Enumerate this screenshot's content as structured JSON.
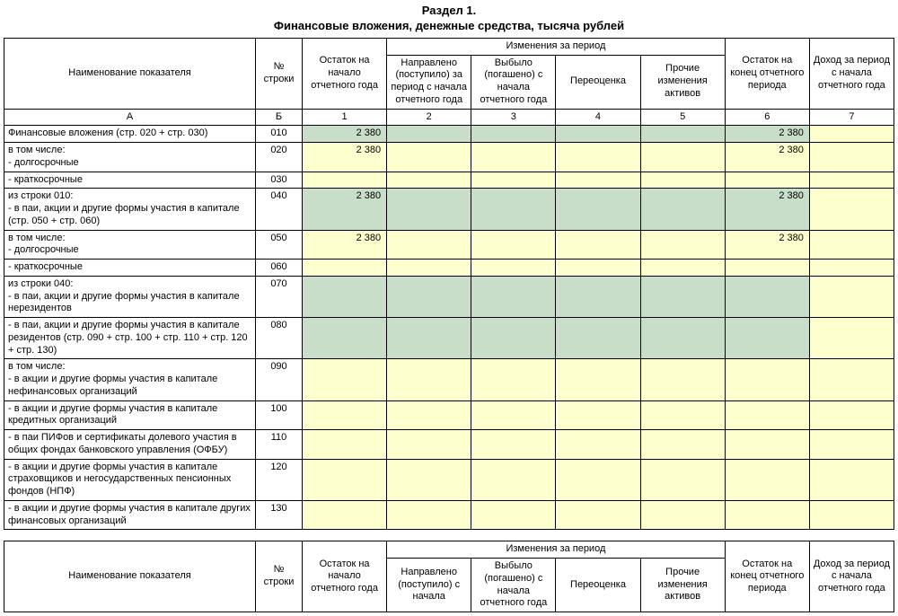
{
  "title_line1": "Раздел 1.",
  "title_line2": "Финансовые вложения, денежные средства, тысяча рублей",
  "columns": {
    "name": "Наименование показателя",
    "rowno": "№ строки",
    "start": "Остаток на начало отчетного года",
    "changes": "Изменения за период",
    "c2": "Направлено (поступило) за период с начала отчетного года",
    "c3": "Выбыло (погашено) с начала отчетного года",
    "c4": "Переоценка",
    "c5": "Прочие изменения активов",
    "end": "Остаток на конец отчетного периода",
    "income": "Доход за период с начала отчетного года"
  },
  "letters": {
    "a": "А",
    "b": "Б",
    "c1": "1",
    "c2": "2",
    "c3": "3",
    "c4": "4",
    "c5": "5",
    "c6": "6",
    "c7": "7"
  },
  "footer_changes_c2": "Направлено (поступило) с начала",
  "footer_changes_c3": "Выбыло (погашено) с начала отчетного года",
  "footer_income": "Доход за период с начала отчетного года",
  "rows": [
    {
      "label": "Финансовые вложения (стр. 020 + стр. 030)",
      "code": "010",
      "bg": "green",
      "v1": "2 380",
      "v6": "2 380",
      "col7bg": "yellow"
    },
    {
      "label": "в том числе:\n  - долгосрочные",
      "code": "020",
      "bg": "yellow",
      "v1": "2 380",
      "v6": "2 380",
      "col7bg": "yellow"
    },
    {
      "label": "  - краткосрочные",
      "code": "030",
      "bg": "yellow",
      "col7bg": "yellow"
    },
    {
      "label": "из строки 010:\n- в паи, акции и другие формы участия в капитале (стр. 050 + стр. 060)",
      "code": "040",
      "bg": "green",
      "v1": "2 380",
      "v6": "2 380",
      "col7bg": "yellow"
    },
    {
      "label": "в том числе:\n  - долгосрочные",
      "code": "050",
      "bg": "yellow",
      "v1": "2 380",
      "v6": "2 380",
      "col7bg": "yellow"
    },
    {
      "label": "  - краткосрочные",
      "code": "060",
      "bg": "yellow",
      "col7bg": "yellow"
    },
    {
      "label": "из строки 040:\n- в паи, акции и другие формы участия в капитале нерезидентов",
      "code": "070",
      "bg": "green",
      "col7bg": "yellow"
    },
    {
      "label": "- в паи, акции и другие формы участия в капитале резидентов (стр. 090 + стр. 100 + стр. 110 + стр. 120 + стр. 130)",
      "code": "080",
      "bg": "green",
      "col7bg": "yellow"
    },
    {
      "label": "в том числе:\n  - в акции и другие формы участия в капитале нефинансовых организаций",
      "code": "090",
      "bg": "yellow",
      "col7bg": "yellow"
    },
    {
      "label": "  - в акции и другие формы участия в капитале кредитных организаций",
      "code": "100",
      "bg": "yellow",
      "col7bg": "yellow"
    },
    {
      "label": "  - в паи ПИФов и сертификаты долевого участия в общих фондах банковского управления (ОФБУ)",
      "code": "110",
      "bg": "yellow",
      "col7bg": "yellow"
    },
    {
      "label": "  - в акции и другие формы участия в капитале страховщиков и негосударственных пенсионных фондов (НПФ)",
      "code": "120",
      "bg": "yellow",
      "col7bg": "yellow"
    },
    {
      "label": "  - в акции и другие формы участия в капитале других финансовых организаций",
      "code": "130",
      "bg": "yellow",
      "col7bg": "yellow"
    }
  ],
  "colors": {
    "green": "#c9dec9",
    "yellow": "#feffce",
    "border": "#000000",
    "text": "#000000",
    "background": "#ffffff"
  },
  "typography": {
    "body_fontsize_pt": 8,
    "title_fontsize_pt": 10,
    "font_family": "Arial"
  }
}
